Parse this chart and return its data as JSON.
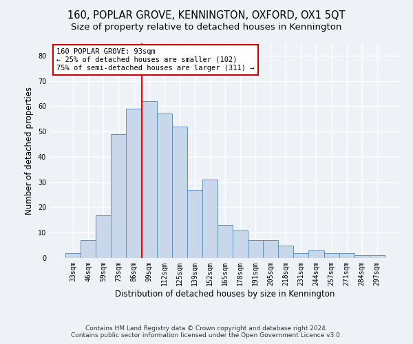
{
  "title": "160, POPLAR GROVE, KENNINGTON, OXFORD, OX1 5QT",
  "subtitle": "Size of property relative to detached houses in Kennington",
  "xlabel": "Distribution of detached houses by size in Kennington",
  "ylabel": "Number of detached properties",
  "categories": [
    "33sqm",
    "46sqm",
    "59sqm",
    "73sqm",
    "86sqm",
    "99sqm",
    "112sqm",
    "125sqm",
    "139sqm",
    "152sqm",
    "165sqm",
    "178sqm",
    "191sqm",
    "205sqm",
    "218sqm",
    "231sqm",
    "244sqm",
    "257sqm",
    "271sqm",
    "284sqm",
    "297sqm"
  ],
  "values": [
    2,
    7,
    17,
    49,
    59,
    62,
    57,
    52,
    27,
    31,
    13,
    11,
    7,
    7,
    5,
    2,
    3,
    2,
    2,
    1,
    1
  ],
  "bar_color": "#c8d8ea",
  "bar_edge_color": "#6090b8",
  "red_line_x": 4.5,
  "annotation_text": "160 POPLAR GROVE: 93sqm\n← 25% of detached houses are smaller (102)\n75% of semi-detached houses are larger (311) →",
  "annotation_box_color": "#ffffff",
  "annotation_box_edge": "#cc0000",
  "ylim": [
    0,
    85
  ],
  "yticks": [
    0,
    10,
    20,
    30,
    40,
    50,
    60,
    70,
    80
  ],
  "footer_line1": "Contains HM Land Registry data © Crown copyright and database right 2024.",
  "footer_line2": "Contains public sector information licensed under the Open Government Licence v3.0.",
  "background_color": "#eef2f7",
  "plot_background": "#eef2f7",
  "grid_color": "#ffffff",
  "title_fontsize": 10.5,
  "subtitle_fontsize": 9.5,
  "axis_label_fontsize": 8.5,
  "tick_fontsize": 7,
  "footer_fontsize": 6.5,
  "annotation_fontsize": 7.5
}
